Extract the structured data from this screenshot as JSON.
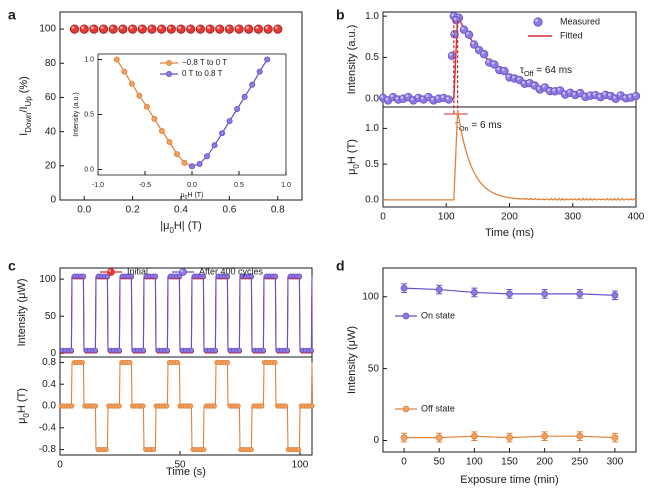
{
  "colors": {
    "red": "#d32f2f",
    "red_fill": "#e53935",
    "purple": "#6a4fc9",
    "purple_fill": "#8e7ae0",
    "orange": "#e0823c",
    "orange_fill": "#f0a060",
    "axis": "#1a1a1a",
    "fit": "#d32f2f",
    "annot": "#c62828"
  },
  "panels": {
    "a": "a",
    "b": "b",
    "c": "c",
    "d": "d"
  },
  "chart_data": [
    {
      "id": "a",
      "type": "scatter",
      "xlabel": "|μ0H| (T)",
      "ylabel": "IDown/IUp (%)",
      "xlim": [
        -0.1,
        0.9
      ],
      "ylim": [
        0,
        110
      ],
      "xticks": [
        0.0,
        0.2,
        0.4,
        0.6,
        0.8
      ],
      "yticks": [
        0,
        20,
        40,
        60,
        80,
        100
      ],
      "series": [
        {
          "x": [
            -0.04,
            0.0,
            0.04,
            0.08,
            0.12,
            0.16,
            0.2,
            0.24,
            0.28,
            0.32,
            0.36,
            0.4,
            0.44,
            0.48,
            0.52,
            0.56,
            0.6,
            0.64,
            0.68,
            0.72,
            0.76,
            0.8
          ],
          "y": [
            100,
            100,
            100,
            100,
            100,
            100,
            100,
            100,
            100,
            100,
            100,
            100,
            100,
            100,
            100,
            100,
            100,
            100,
            100,
            100,
            100,
            100
          ]
        }
      ],
      "inset": {
        "type": "line",
        "xlabel": "μ0H (T)",
        "ylabel": "Intensity (a.u.)",
        "xlim": [
          -1.0,
          1.0
        ],
        "ylim": [
          -0.05,
          1.05
        ],
        "xticks": [
          -1.0,
          -0.5,
          0.0,
          0.5,
          1.0
        ],
        "yticks": [
          0.0,
          0.5,
          1.0
        ],
        "series": [
          {
            "name": "−0.8 T to 0 T",
            "x": [
              -0.8,
              -0.72,
              -0.64,
              -0.56,
              -0.48,
              -0.4,
              -0.32,
              -0.24,
              -0.16,
              -0.08,
              0.0
            ],
            "y": [
              1.0,
              0.89,
              0.78,
              0.67,
              0.57,
              0.46,
              0.35,
              0.25,
              0.14,
              0.06,
              0.03
            ]
          },
          {
            "name": "0 T to 0.8 T",
            "x": [
              0.0,
              0.08,
              0.16,
              0.24,
              0.32,
              0.4,
              0.48,
              0.56,
              0.64,
              0.72,
              0.8
            ],
            "y": [
              0.03,
              0.05,
              0.12,
              0.22,
              0.33,
              0.44,
              0.55,
              0.66,
              0.77,
              0.89,
              1.0
            ]
          }
        ]
      }
    },
    {
      "id": "b",
      "type": "line",
      "xlabel": "Time (ms)",
      "xlim": [
        0,
        400
      ],
      "xticks": [
        0,
        100,
        200,
        300,
        400
      ],
      "top": {
        "ylabel": "Intensity (a.u.)",
        "ylim": [
          -0.1,
          1.05
        ],
        "yticks": [
          0.0,
          0.5,
          1.0
        ],
        "legend": [
          "Measured",
          "Fitted"
        ],
        "tau_off_label": "τOff = 64 ms",
        "tau_off": 64,
        "pulse_start": 112,
        "rise": 6,
        "baseline_noise": [
          0.01,
          -0.02,
          0.02,
          -0.01,
          0.0,
          0.02,
          -0.02,
          0.01,
          -0.01,
          0.02,
          -0.02,
          0.0,
          0.01,
          -0.01,
          0.02
        ]
      },
      "bottom": {
        "ylabel": "μ0H (T)",
        "ylim": [
          -0.1,
          1.3
        ],
        "yticks": [
          0.0,
          0.5,
          1.0
        ],
        "tau_on_label": "τOn = 6 ms",
        "tau_on": 6,
        "peak": 1.25
      }
    },
    {
      "id": "c",
      "type": "line",
      "xlabel": "Time (s)",
      "xlim": [
        0,
        105
      ],
      "xticks": [
        0,
        50,
        100
      ],
      "top": {
        "ylabel": "Intensity (μW)",
        "ylim": [
          -5,
          115
        ],
        "yticks": [
          0,
          50,
          100
        ],
        "legend": [
          "Initial",
          "After 400 cycles"
        ],
        "high": 103,
        "low": 3
      },
      "bottom": {
        "ylabel": "μ0H (T)",
        "ylim": [
          -0.9,
          0.9
        ],
        "yticks": [
          -0.8,
          -0.4,
          0.0,
          0.4,
          0.8
        ],
        "levels": [
          0.8,
          0,
          -0.8,
          0
        ]
      },
      "period": 10,
      "start": 5
    },
    {
      "id": "d",
      "type": "line",
      "xlabel": "Exposure time (min)",
      "ylabel": "Intensity (μW)",
      "xlim": [
        -30,
        330
      ],
      "ylim": [
        -8,
        120
      ],
      "xticks": [
        0,
        50,
        100,
        150,
        200,
        250,
        300
      ],
      "yticks": [
        0,
        50,
        100
      ],
      "categories": [
        0,
        50,
        100,
        150,
        200,
        250,
        300
      ],
      "series": [
        {
          "name": "On state",
          "values": [
            106,
            105,
            103,
            102,
            102,
            102,
            101
          ],
          "err": [
            3,
            3,
            3,
            3,
            3,
            3,
            3
          ]
        },
        {
          "name": "Off state",
          "values": [
            2,
            2,
            3,
            2,
            3,
            3,
            2
          ],
          "err": [
            3,
            3,
            3,
            3,
            3,
            3,
            3
          ]
        }
      ]
    }
  ]
}
